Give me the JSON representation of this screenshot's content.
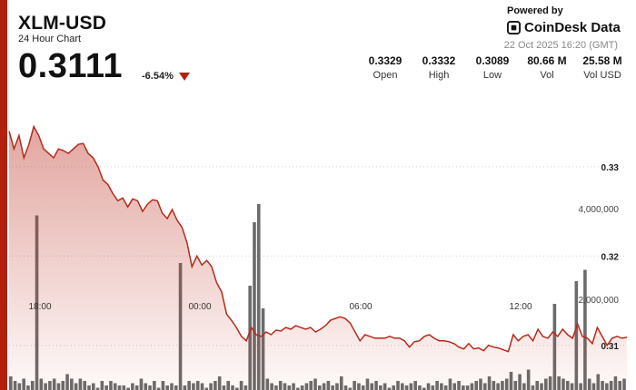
{
  "header": {
    "symbol": "XLM-USD",
    "subtitle": "24 Hour Chart",
    "price": "0.3111",
    "change": "-6.54%",
    "powered_by": "Powered by",
    "brand": "CoinDesk Data",
    "timestamp": "22 Oct 2025 16:20 (GMT)"
  },
  "stats": [
    {
      "value": "0.3329",
      "label": "Open"
    },
    {
      "value": "0.3332",
      "label": "High"
    },
    {
      "value": "0.3089",
      "label": "Low"
    },
    {
      "value": "80.66 M",
      "label": "Vol"
    },
    {
      "value": "25.58 M",
      "label": "Vol USD"
    }
  ],
  "colors": {
    "accent": "#b4200e",
    "line": "#b52a1a",
    "bar": "#6b6b6b",
    "down": "#b4200e"
  },
  "chart_data": {
    "type": "line",
    "series": [
      {
        "values": [
          0.334,
          0.332,
          0.3335,
          0.331,
          0.3325,
          0.3345,
          0.3335,
          0.332,
          0.3315,
          0.331,
          0.332,
          0.3318,
          0.3315,
          0.332,
          0.3325,
          0.3326,
          0.3315,
          0.331,
          0.33,
          0.3285,
          0.328,
          0.327,
          0.3262,
          0.3265,
          0.3255,
          0.3264,
          0.3262,
          0.325,
          0.3258,
          0.3263,
          0.3262,
          0.3248,
          0.3242,
          0.3252,
          0.324,
          0.3232,
          0.3215,
          0.3188,
          0.32,
          0.319,
          0.3195,
          0.3188,
          0.317,
          0.316,
          0.3135,
          0.3128,
          0.312,
          0.311,
          0.3105,
          0.312,
          0.3112,
          0.311,
          0.3115,
          0.3112,
          0.3117,
          0.3116,
          0.312,
          0.3118,
          0.3122,
          0.312,
          0.3118,
          0.312,
          0.3115,
          0.3118,
          0.3122,
          0.3128,
          0.313,
          0.3132,
          0.313,
          0.3125,
          0.3115,
          0.3105,
          0.3112,
          0.311,
          0.3108,
          0.3108,
          0.3108,
          0.311,
          0.3108,
          0.3108,
          0.3105,
          0.3098,
          0.3104,
          0.3105,
          0.311,
          0.3112,
          0.3108,
          0.3105,
          0.3105,
          0.3104,
          0.3102,
          0.3098,
          0.3096,
          0.3102,
          0.3096,
          0.3097,
          0.3094,
          0.31,
          0.3098,
          0.3097,
          0.3095,
          0.3093,
          0.3112,
          0.3105,
          0.311,
          0.3112,
          0.3105,
          0.3118,
          0.311,
          0.3108,
          0.3115,
          0.311,
          0.3118,
          0.3112,
          0.3108,
          0.3124,
          0.311,
          0.3108,
          0.3102,
          0.312,
          0.311,
          0.31,
          0.3108,
          0.311,
          0.3108,
          0.3109
        ]
      }
    ],
    "x_ticks": [
      "18:00",
      "00:00",
      "06:00",
      "12:00"
    ],
    "y_ticks": [
      "0.33",
      "0.32",
      "0.31"
    ],
    "y_range": [
      0.305,
      0.3375
    ],
    "volume": {
      "values": [
        300000,
        200000,
        150000,
        250000,
        100000,
        200000,
        3850000,
        250000,
        150000,
        200000,
        250000,
        150000,
        200000,
        350000,
        250000,
        150000,
        250000,
        200000,
        100000,
        150000,
        50000,
        200000,
        100000,
        200000,
        150000,
        100000,
        100000,
        50000,
        150000,
        100000,
        250000,
        150000,
        100000,
        200000,
        50000,
        200000,
        100000,
        150000,
        100000,
        2800000,
        100000,
        200000,
        150000,
        200000,
        150000,
        50000,
        150000,
        200000,
        300000,
        100000,
        200000,
        100000,
        50000,
        200000,
        100000,
        2300000,
        3700000,
        4100000,
        1800000,
        250000,
        150000,
        100000,
        200000,
        150000,
        100000,
        150000,
        50000,
        100000,
        150000,
        200000,
        250000,
        100000,
        150000,
        200000,
        100000,
        150000,
        300000,
        100000,
        50000,
        200000,
        150000,
        100000,
        250000,
        150000,
        200000,
        100000,
        150000,
        50000,
        100000,
        200000,
        150000,
        100000,
        150000,
        200000,
        100000,
        50000,
        150000,
        100000,
        200000,
        150000,
        100000,
        250000,
        150000,
        200000,
        100000,
        100000,
        150000,
        200000,
        250000,
        150000,
        300000,
        200000,
        150000,
        200000,
        250000,
        400000,
        200000,
        350000,
        150000,
        450000,
        100000,
        200000,
        150000,
        250000,
        300000,
        1900000,
        300000,
        250000,
        200000,
        150000,
        2400000,
        150000,
        2650000,
        250000,
        150000,
        350000,
        200000,
        150000,
        200000,
        300000,
        200000,
        250000
      ],
      "ticks": [
        "4,000,000",
        "2,000,000"
      ],
      "max": 5000000
    }
  }
}
